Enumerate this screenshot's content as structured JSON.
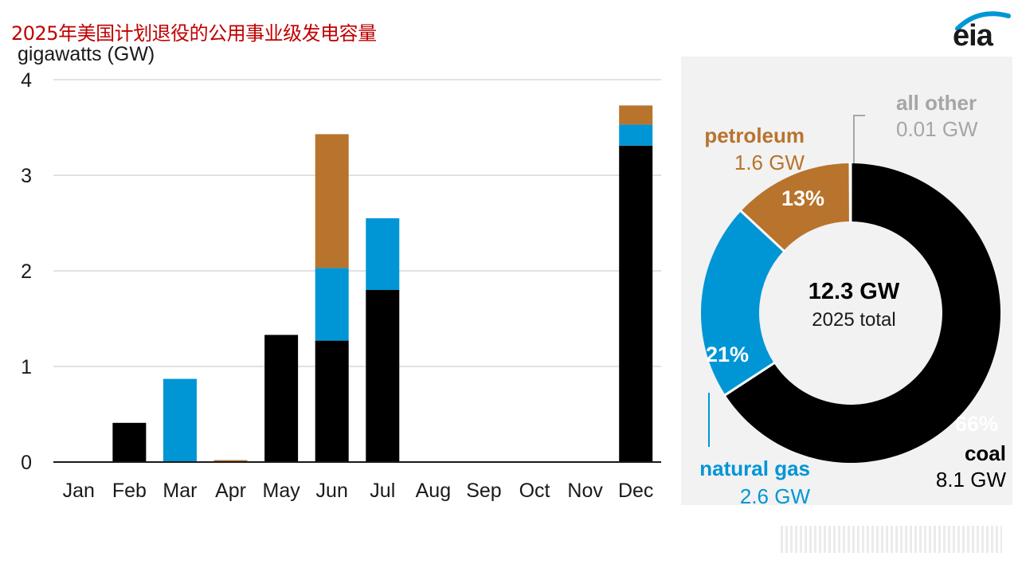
{
  "title": "2025年美国计划退役的公用事业级发电容量",
  "logo_text": "eia",
  "colors": {
    "coal": "#000000",
    "natural_gas": "#0096d6",
    "petroleum": "#b8732c",
    "all_other": "#a6a6a6",
    "title": "#c00000",
    "panel": "#f2f2f2"
  },
  "chart_data": [
    {
      "type": "bar",
      "stacked": true,
      "ylabel": "gigawatts (GW)",
      "ylim": [
        0,
        4
      ],
      "yticks": [
        0,
        1,
        2,
        3,
        4
      ],
      "grid": true,
      "categories": [
        "Jan",
        "Feb",
        "Mar",
        "Apr",
        "May",
        "Jun",
        "Jul",
        "Aug",
        "Sep",
        "Oct",
        "Nov",
        "Dec"
      ],
      "series": [
        {
          "name": "coal",
          "color": "#000000",
          "values": [
            0,
            0.41,
            0,
            0,
            1.33,
            1.27,
            1.8,
            0,
            0,
            0,
            0,
            3.31
          ]
        },
        {
          "name": "natural gas",
          "color": "#0096d6",
          "values": [
            0,
            0,
            0.87,
            0,
            0,
            0.76,
            0.75,
            0,
            0,
            0,
            0,
            0.22
          ]
        },
        {
          "name": "petroleum",
          "color": "#b8732c",
          "values": [
            0,
            0,
            0,
            0.02,
            0,
            1.4,
            0,
            0,
            0,
            0,
            0,
            0.2
          ]
        }
      ]
    },
    {
      "type": "pie",
      "donut": true,
      "center_value": "12.3 GW",
      "center_label": "2025 total",
      "slices": [
        {
          "name": "coal",
          "value": 8.1,
          "unit_label": "8.1 GW",
          "percent_label": "66%",
          "color": "#000000",
          "percent_color": "#ffffff",
          "name_color": "#000000",
          "value_color": "#000000"
        },
        {
          "name": "natural gas",
          "value": 2.6,
          "unit_label": "2.6 GW",
          "percent_label": "21%",
          "color": "#0096d6",
          "percent_color": "#ffffff",
          "name_color": "#0096d6",
          "value_color": "#0096d6"
        },
        {
          "name": "petroleum",
          "value": 1.6,
          "unit_label": "1.6 GW",
          "percent_label": "13%",
          "color": "#b8732c",
          "percent_color": "#ffffff",
          "name_color": "#b8732c",
          "value_color": "#b8732c"
        },
        {
          "name": "all other",
          "value": 0.01,
          "unit_label": "0.01 GW",
          "percent_label": "",
          "color": "#a6a6a6",
          "percent_color": "#ffffff",
          "name_color": "#a6a6a6",
          "value_color": "#a6a6a6"
        }
      ]
    }
  ]
}
